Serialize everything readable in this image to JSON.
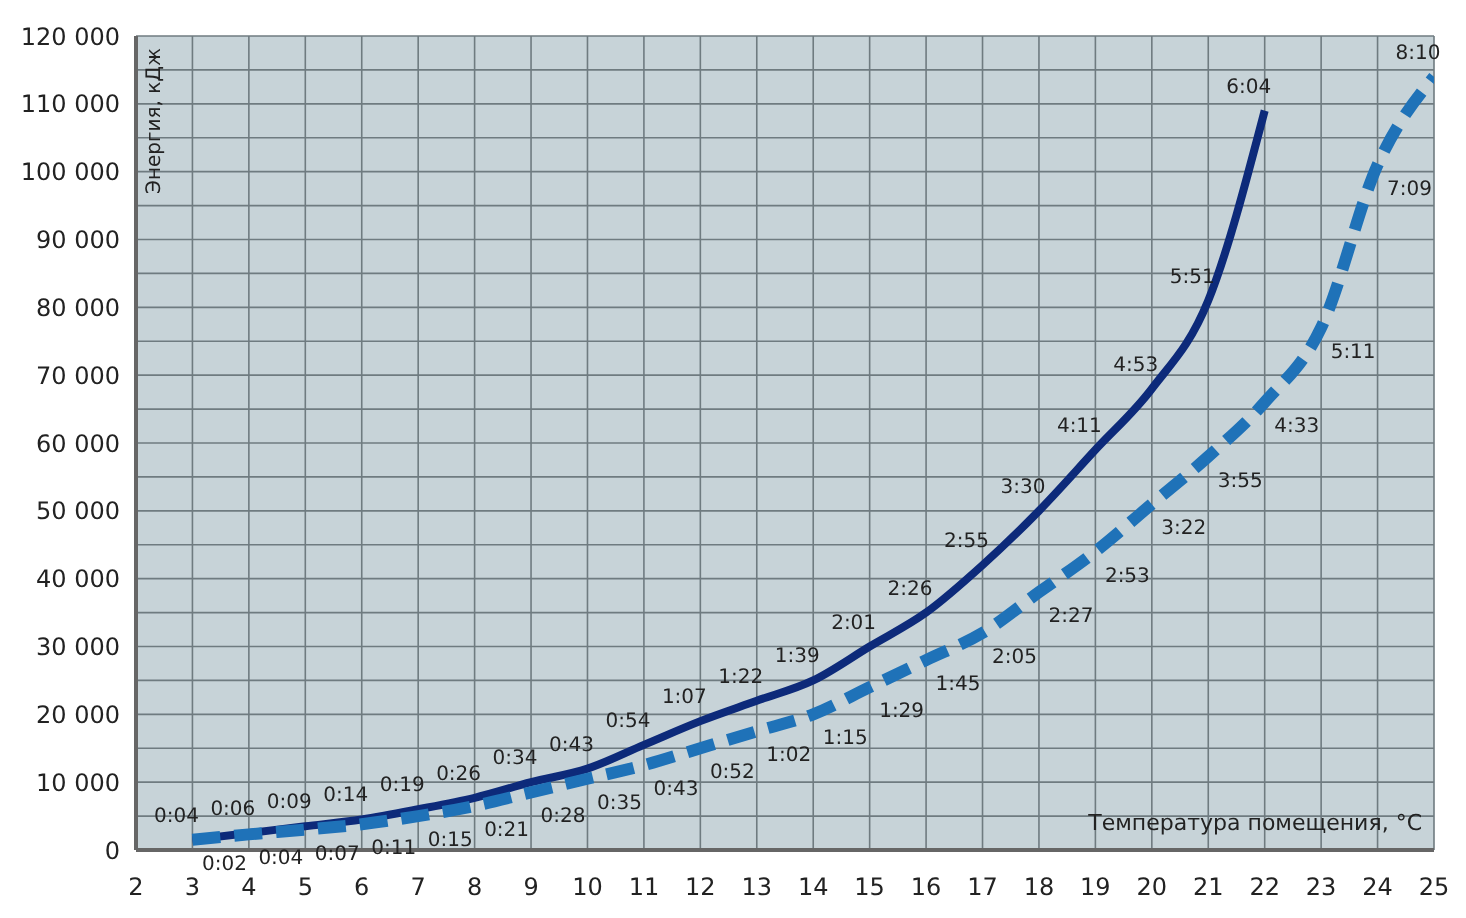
{
  "chart_data": {
    "type": "line",
    "xlabel": "Температура помещения, °C",
    "ylabel": "Энергия, кДж",
    "series": [
      {
        "type": "line",
        "line_style": "solid",
        "color": "#0d2a7a",
        "x": [
          3,
          4,
          5,
          6,
          7,
          8,
          9,
          10,
          11,
          12,
          13,
          14,
          15,
          16,
          17,
          18,
          19,
          20,
          21,
          22
        ],
        "values": [
          1500,
          2500,
          3500,
          4500,
          6000,
          7700,
          10000,
          12000,
          15500,
          19000,
          22000,
          25000,
          30000,
          35000,
          42000,
          50000,
          59000,
          68000,
          81000,
          109000
        ]
      },
      {
        "type": "line",
        "line_style": "dashed",
        "color": "#1f72b8",
        "x": [
          3,
          4,
          5,
          6,
          7,
          8,
          9,
          10,
          11,
          12,
          13,
          14,
          15,
          16,
          17,
          18,
          19,
          20,
          21,
          22,
          23,
          24,
          25
        ],
        "values": [
          1500,
          2300,
          3000,
          3800,
          5000,
          6500,
          8500,
          10500,
          12500,
          15000,
          17500,
          20000,
          24000,
          28000,
          32000,
          38000,
          44000,
          51000,
          58000,
          66000,
          77000,
          101000,
          114000
        ]
      }
    ],
    "annotations": [
      {
        "text": "0:04",
        "x": 3,
        "y": 1500
      },
      {
        "text": "0:06",
        "x": 4,
        "y": 2500
      },
      {
        "text": "0:09",
        "x": 5,
        "y": 3500
      },
      {
        "text": "0:14",
        "x": 6,
        "y": 4500
      },
      {
        "text": "0:19",
        "x": 7,
        "y": 6000
      },
      {
        "text": "0:26",
        "x": 8,
        "y": 7700
      },
      {
        "text": "0:34",
        "x": 9,
        "y": 10000
      },
      {
        "text": "0:43",
        "x": 10,
        "y": 12000
      },
      {
        "text": "0:54",
        "x": 11,
        "y": 15500
      },
      {
        "text": "1:07",
        "x": 12,
        "y": 19000
      },
      {
        "text": "1:22",
        "x": 13,
        "y": 22000
      },
      {
        "text": "1:39",
        "x": 14,
        "y": 25000
      },
      {
        "text": "2:01",
        "x": 15,
        "y": 30000
      },
      {
        "text": "2:26",
        "x": 16,
        "y": 35000
      },
      {
        "text": "2:55",
        "x": 17,
        "y": 42000
      },
      {
        "text": "3:30",
        "x": 18,
        "y": 50000
      },
      {
        "text": "4:11",
        "x": 19,
        "y": 59000
      },
      {
        "text": "4:53",
        "x": 20,
        "y": 68000
      },
      {
        "text": "5:51",
        "x": 21,
        "y": 81000
      },
      {
        "text": "6:04",
        "x": 22,
        "y": 109000
      },
      {
        "text": "0:02",
        "x": 3,
        "y": 1499
      },
      {
        "text": "0:04",
        "x": 4,
        "y": 2300
      },
      {
        "text": "0:07",
        "x": 5,
        "y": 3000
      },
      {
        "text": "0:11",
        "x": 6,
        "y": 3800
      },
      {
        "text": "0:15",
        "x": 7,
        "y": 5000
      },
      {
        "text": "0:21",
        "x": 8,
        "y": 6500
      },
      {
        "text": "0:28",
        "x": 9,
        "y": 8500
      },
      {
        "text": "0:35",
        "x": 10,
        "y": 10500
      },
      {
        "text": "0:43",
        "x": 11,
        "y": 12500
      },
      {
        "text": "0:52",
        "x": 12,
        "y": 15000
      },
      {
        "text": "1:02",
        "x": 13,
        "y": 17500
      },
      {
        "text": "1:15",
        "x": 14,
        "y": 20000
      },
      {
        "text": "1:29",
        "x": 15,
        "y": 24000
      },
      {
        "text": "1:45",
        "x": 16,
        "y": 28000
      },
      {
        "text": "2:05",
        "x": 17,
        "y": 32000
      },
      {
        "text": "2:27",
        "x": 18,
        "y": 38000
      },
      {
        "text": "2:53",
        "x": 19,
        "y": 44000
      },
      {
        "text": "3:22",
        "x": 20,
        "y": 51000
      },
      {
        "text": "3:55",
        "x": 21,
        "y": 58000
      },
      {
        "text": "4:33",
        "x": 22,
        "y": 66000
      },
      {
        "text": "5:11",
        "x": 23,
        "y": 77000
      },
      {
        "text": "7:09",
        "x": 24,
        "y": 101000
      },
      {
        "text": "8:10",
        "x": 25,
        "y": 114000
      }
    ],
    "xlim": [
      2,
      25
    ],
    "xticks": [
      2,
      3,
      4,
      5,
      6,
      7,
      8,
      9,
      10,
      11,
      12,
      13,
      14,
      15,
      16,
      17,
      18,
      19,
      20,
      21,
      22,
      23,
      24,
      25
    ],
    "ylim": [
      0,
      120000
    ],
    "yticks": [
      0,
      {
        "value": 5000,
        "label": null
      },
      {
        "value": 10000,
        "label": "10 000"
      },
      {
        "value": 15000,
        "label": null
      },
      {
        "value": 20000,
        "label": "20 000"
      },
      {
        "value": 25000,
        "label": null
      },
      {
        "value": 30000,
        "label": "30 000"
      },
      {
        "value": 35000,
        "label": null
      },
      {
        "value": 40000,
        "label": "40 000"
      },
      {
        "value": 45000,
        "label": null
      },
      {
        "value": 50000,
        "label": "50 000"
      },
      {
        "value": 55000,
        "label": null
      },
      {
        "value": 60000,
        "label": "60 000"
      },
      {
        "value": 65000,
        "label": null
      },
      {
        "value": 70000,
        "label": "70 000"
      },
      {
        "value": 75000,
        "label": null
      },
      {
        "value": 80000,
        "label": "80 000"
      },
      {
        "value": 85000,
        "label": null
      },
      {
        "value": 90000,
        "label": "90 000"
      },
      {
        "value": 95000,
        "label": null
      },
      {
        "value": 100000,
        "label": "100 000"
      },
      {
        "value": 105000,
        "label": null
      },
      {
        "value": 110000,
        "label": "110 000"
      },
      {
        "value": 115000,
        "label": null
      },
      {
        "value": 120000,
        "label": "120 000"
      }
    ],
    "grid": true,
    "marker": "none"
  }
}
